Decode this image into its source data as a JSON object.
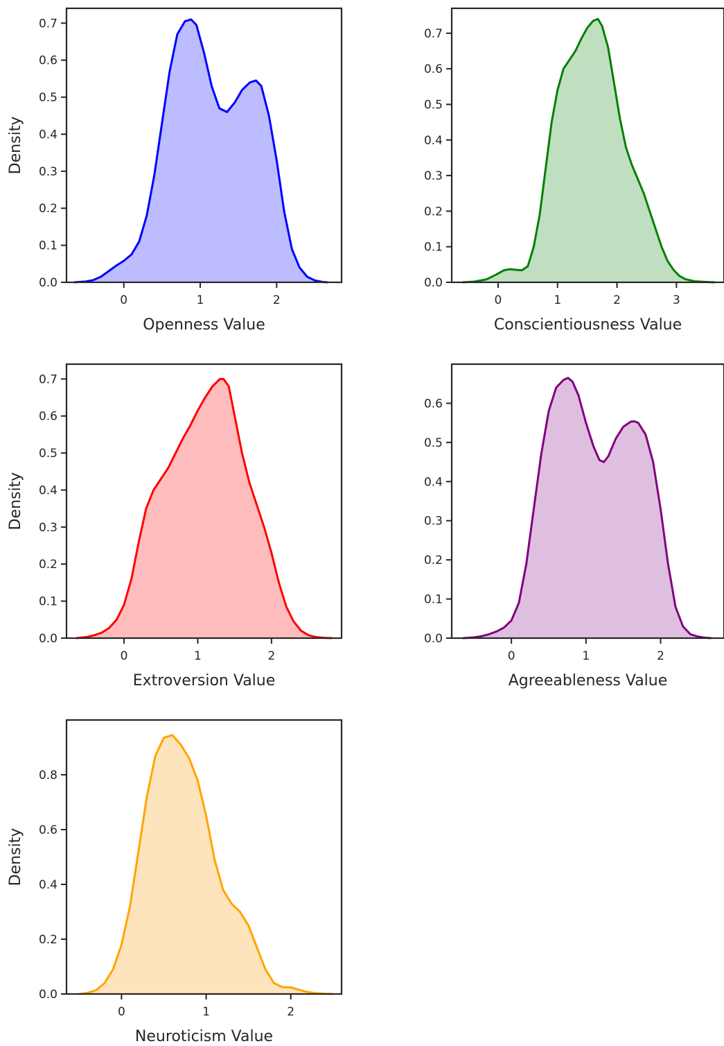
{
  "chart_data": [
    {
      "type": "area",
      "xlabel": "Openness Value",
      "ylabel": "Density",
      "color": "#0000ff",
      "fill": "#bcbcff",
      "xlim": [
        -0.75,
        2.85
      ],
      "ylim": [
        0,
        0.74
      ],
      "xticks": [
        0,
        1,
        2
      ],
      "yticks": [
        0.0,
        0.1,
        0.2,
        0.3,
        0.4,
        0.5,
        0.6,
        0.7
      ],
      "ytick_labels": [
        "0.0",
        "0.1",
        "0.2",
        "0.3",
        "0.4",
        "0.5",
        "0.6",
        "0.7"
      ],
      "x": [
        -0.65,
        -0.5,
        -0.4,
        -0.3,
        -0.2,
        -0.1,
        0.0,
        0.1,
        0.2,
        0.3,
        0.4,
        0.5,
        0.6,
        0.7,
        0.8,
        0.88,
        0.95,
        1.05,
        1.15,
        1.25,
        1.35,
        1.45,
        1.55,
        1.65,
        1.73,
        1.8,
        1.9,
        2.0,
        2.1,
        2.2,
        2.3,
        2.4,
        2.5,
        2.6,
        2.67
      ],
      "y": [
        0.0,
        0.002,
        0.006,
        0.015,
        0.03,
        0.045,
        0.058,
        0.075,
        0.11,
        0.18,
        0.29,
        0.43,
        0.57,
        0.67,
        0.705,
        0.71,
        0.695,
        0.62,
        0.53,
        0.47,
        0.46,
        0.485,
        0.52,
        0.54,
        0.545,
        0.53,
        0.45,
        0.33,
        0.19,
        0.09,
        0.04,
        0.015,
        0.005,
        0.001,
        0.0
      ]
    },
    {
      "type": "area",
      "xlabel": "Conscientiousness Value",
      "ylabel": "",
      "color": "#008000",
      "fill": "#c0dfc0",
      "xlim": [
        -0.78,
        3.8
      ],
      "ylim": [
        0,
        0.77
      ],
      "xticks": [
        0,
        1,
        2,
        3
      ],
      "yticks": [
        0.0,
        0.1,
        0.2,
        0.3,
        0.4,
        0.5,
        0.6,
        0.7
      ],
      "ytick_labels": [
        "0.0",
        "0.1",
        "0.2",
        "0.3",
        "0.4",
        "0.5",
        "0.6",
        "0.7"
      ],
      "x": [
        -0.6,
        -0.4,
        -0.2,
        -0.05,
        0.1,
        0.2,
        0.3,
        0.4,
        0.5,
        0.6,
        0.7,
        0.8,
        0.9,
        1.0,
        1.1,
        1.2,
        1.3,
        1.4,
        1.5,
        1.6,
        1.68,
        1.75,
        1.85,
        1.95,
        2.05,
        2.15,
        2.25,
        2.35,
        2.45,
        2.55,
        2.65,
        2.75,
        2.85,
        2.95,
        3.05,
        3.15,
        3.3,
        3.5,
        3.65
      ],
      "y": [
        0.0,
        0.002,
        0.008,
        0.02,
        0.034,
        0.037,
        0.035,
        0.034,
        0.045,
        0.1,
        0.19,
        0.32,
        0.45,
        0.54,
        0.6,
        0.625,
        0.65,
        0.685,
        0.715,
        0.735,
        0.74,
        0.72,
        0.66,
        0.56,
        0.46,
        0.38,
        0.33,
        0.29,
        0.25,
        0.2,
        0.15,
        0.1,
        0.06,
        0.035,
        0.018,
        0.009,
        0.003,
        0.001,
        0.0
      ]
    },
    {
      "type": "area",
      "xlabel": "Extroversion Value",
      "ylabel": "Density",
      "color": "#ff0000",
      "fill": "#ffbcbc",
      "xlim": [
        -0.78,
        2.95
      ],
      "ylim": [
        0,
        0.74
      ],
      "xticks": [
        0,
        1,
        2
      ],
      "yticks": [
        0.0,
        0.1,
        0.2,
        0.3,
        0.4,
        0.5,
        0.6,
        0.7
      ],
      "ytick_labels": [
        "0.0",
        "0.1",
        "0.2",
        "0.3",
        "0.4",
        "0.5",
        "0.6",
        "0.7"
      ],
      "x": [
        -0.65,
        -0.5,
        -0.4,
        -0.3,
        -0.2,
        -0.1,
        0.0,
        0.1,
        0.2,
        0.3,
        0.4,
        0.5,
        0.6,
        0.7,
        0.8,
        0.9,
        1.0,
        1.1,
        1.2,
        1.3,
        1.35,
        1.42,
        1.5,
        1.6,
        1.7,
        1.8,
        1.9,
        2.0,
        2.1,
        2.2,
        2.3,
        2.4,
        2.5,
        2.6,
        2.7,
        2.82
      ],
      "y": [
        0.0,
        0.003,
        0.008,
        0.015,
        0.028,
        0.05,
        0.09,
        0.16,
        0.26,
        0.35,
        0.4,
        0.43,
        0.46,
        0.5,
        0.54,
        0.575,
        0.615,
        0.65,
        0.68,
        0.7,
        0.7,
        0.68,
        0.6,
        0.5,
        0.42,
        0.36,
        0.3,
        0.23,
        0.15,
        0.085,
        0.045,
        0.02,
        0.008,
        0.003,
        0.001,
        0.0
      ]
    },
    {
      "type": "area",
      "xlabel": "Agreeableness Value",
      "ylabel": "",
      "color": "#800080",
      "fill": "#dfbfdf",
      "xlim": [
        -0.8,
        2.85
      ],
      "ylim": [
        0,
        0.7
      ],
      "xticks": [
        0,
        1,
        2
      ],
      "yticks": [
        0.0,
        0.1,
        0.2,
        0.3,
        0.4,
        0.5,
        0.6
      ],
      "ytick_labels": [
        "0.0",
        "0.1",
        "0.2",
        "0.3",
        "0.4",
        "0.5",
        "0.6"
      ],
      "x": [
        -0.65,
        -0.5,
        -0.4,
        -0.3,
        -0.2,
        -0.1,
        0.0,
        0.1,
        0.2,
        0.3,
        0.4,
        0.5,
        0.6,
        0.7,
        0.76,
        0.82,
        0.9,
        1.0,
        1.1,
        1.18,
        1.24,
        1.3,
        1.4,
        1.5,
        1.6,
        1.65,
        1.7,
        1.8,
        1.9,
        2.0,
        2.1,
        2.2,
        2.3,
        2.4,
        2.5,
        2.6,
        2.68
      ],
      "y": [
        0.0,
        0.002,
        0.005,
        0.01,
        0.017,
        0.027,
        0.045,
        0.09,
        0.19,
        0.33,
        0.47,
        0.58,
        0.64,
        0.66,
        0.665,
        0.655,
        0.62,
        0.55,
        0.49,
        0.455,
        0.45,
        0.465,
        0.51,
        0.54,
        0.553,
        0.554,
        0.55,
        0.52,
        0.45,
        0.33,
        0.19,
        0.08,
        0.03,
        0.01,
        0.004,
        0.001,
        0.0
      ]
    },
    {
      "type": "area",
      "xlabel": "Neuroticism Value",
      "ylabel": "Density",
      "color": "#ffa500",
      "fill": "#fde4bc",
      "xlim": [
        -0.65,
        2.6
      ],
      "ylim": [
        0,
        1.0
      ],
      "xticks": [
        0,
        1,
        2
      ],
      "yticks": [
        0.0,
        0.2,
        0.4,
        0.6,
        0.8
      ],
      "ytick_labels": [
        "0.0",
        "0.2",
        "0.4",
        "0.6",
        "0.8"
      ],
      "x": [
        -0.5,
        -0.4,
        -0.3,
        -0.2,
        -0.1,
        0.0,
        0.1,
        0.2,
        0.3,
        0.4,
        0.5,
        0.6,
        0.7,
        0.8,
        0.9,
        1.0,
        1.1,
        1.2,
        1.3,
        1.4,
        1.5,
        1.6,
        1.7,
        1.8,
        1.9,
        2.0,
        2.1,
        2.2,
        2.3,
        2.4,
        2.5
      ],
      "y": [
        0.0,
        0.004,
        0.014,
        0.04,
        0.09,
        0.18,
        0.32,
        0.52,
        0.72,
        0.87,
        0.935,
        0.945,
        0.91,
        0.86,
        0.78,
        0.65,
        0.49,
        0.38,
        0.33,
        0.3,
        0.25,
        0.17,
        0.09,
        0.04,
        0.025,
        0.024,
        0.015,
        0.007,
        0.003,
        0.001,
        0.0
      ]
    }
  ]
}
